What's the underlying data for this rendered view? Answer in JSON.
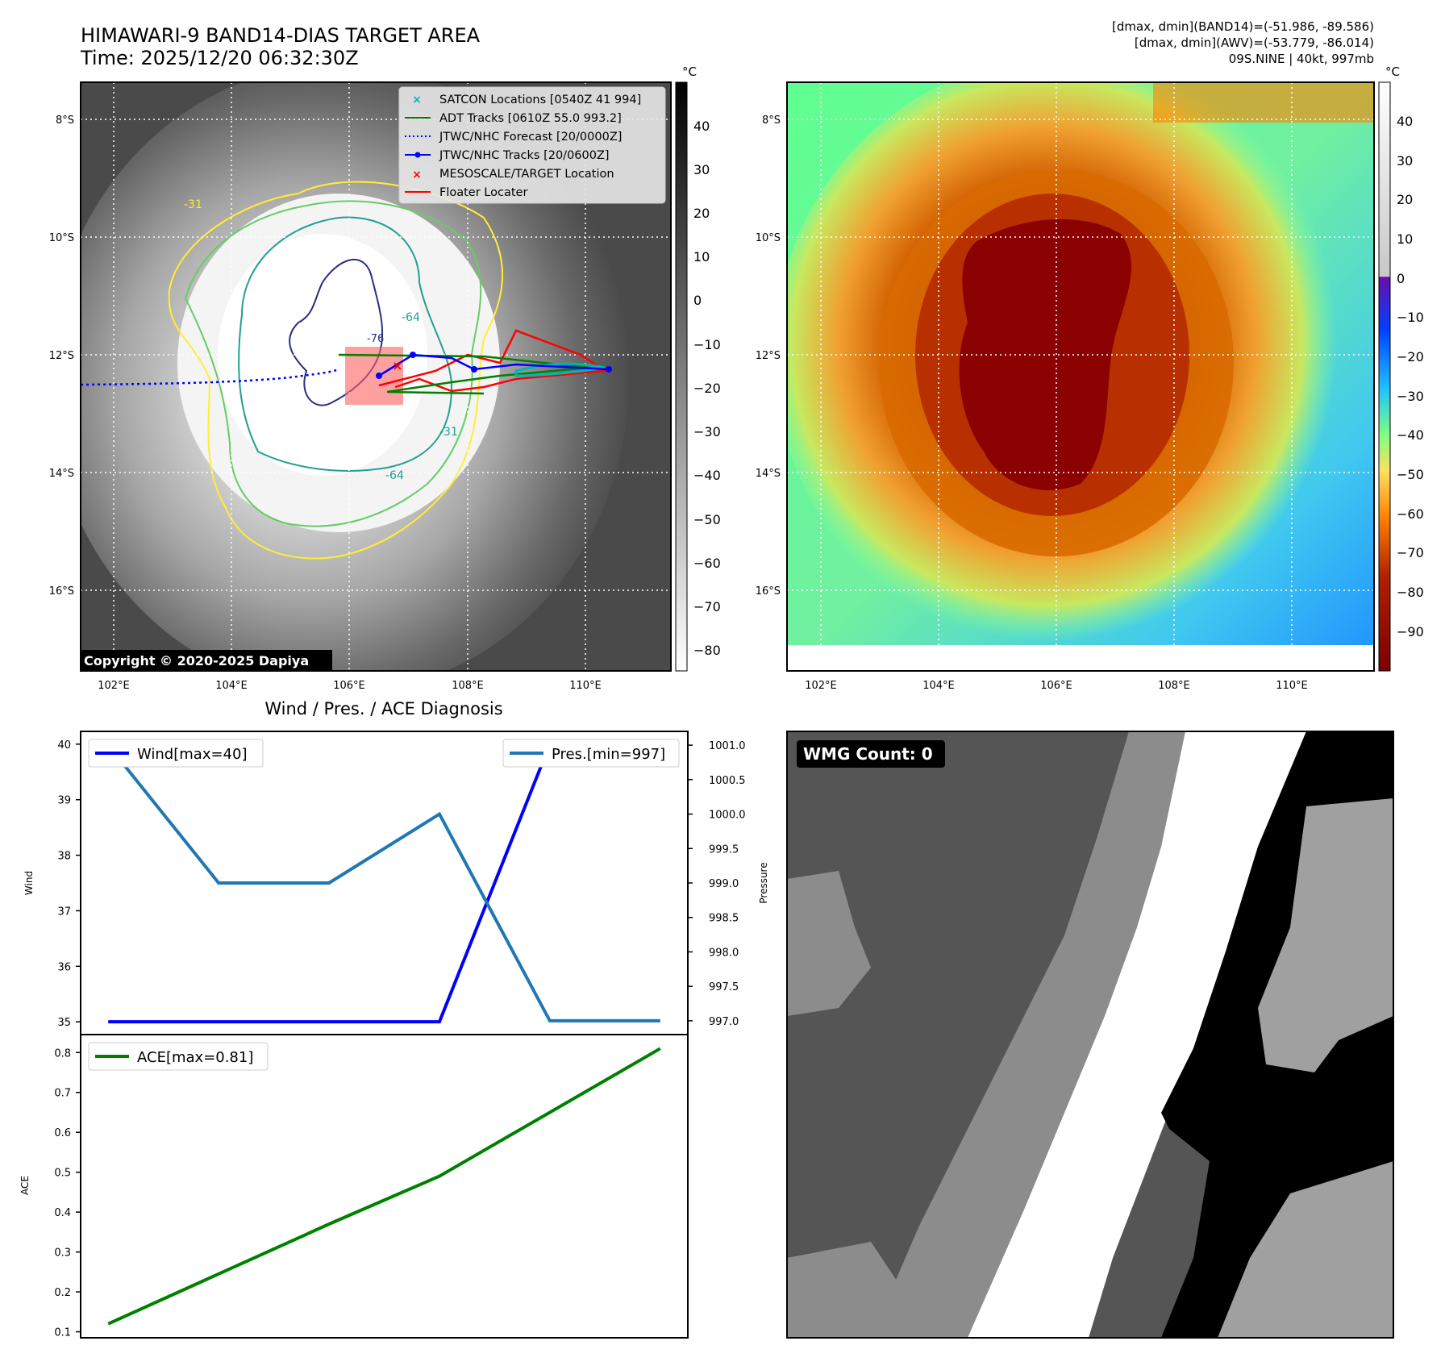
{
  "header": {
    "title_line1": "HIMAWARI-9 BAND14-DIAS TARGET AREA",
    "title_line2": "Time: 2025/12/20 06:32:30Z",
    "stats_line1": "[dmax, dmin](BAND14)=(-51.986, -89.586)",
    "stats_line2": "[dmax, dmin](AWV)=(-53.779, -86.014)",
    "stats_line3": "09S.NINE | 40kt, 997mb"
  },
  "map_left": {
    "copyright": "Copyright © 2020-2025 Dapiya",
    "lon_ticks": [
      "102°E",
      "104°E",
      "106°E",
      "108°E",
      "110°E"
    ],
    "lat_ticks": [
      "8°S",
      "10°S",
      "12°S",
      "14°S",
      "16°S"
    ],
    "contour_labels": [
      "-31",
      "-64",
      "-31",
      "-64",
      "-76"
    ],
    "legend": [
      {
        "label": "SATCON Locations [0540Z 41 994]",
        "color": "#00b5b5",
        "marker": "x"
      },
      {
        "label": "ADT Tracks [0610Z 55.0 993.2]",
        "color": "#008000",
        "marker": "line"
      },
      {
        "label": "JTWC/NHC Forecast [20/0000Z]",
        "color": "#0000ff",
        "marker": "dotted"
      },
      {
        "label": "JTWC/NHC Tracks [20/0600Z]",
        "color": "#0000ff",
        "marker": "line-dot"
      },
      {
        "label": "MESOSCALE/TARGET Location",
        "color": "#ff0000",
        "marker": "x"
      },
      {
        "label": "Floater Locater",
        "color": "#ff0000",
        "marker": "line"
      }
    ],
    "colorbar": {
      "unit": "°C",
      "ticks": [
        "40",
        "30",
        "20",
        "10",
        "0",
        "−10",
        "−20",
        "−30",
        "−40",
        "−50",
        "−60",
        "−70",
        "−80"
      ]
    }
  },
  "map_right": {
    "lon_ticks": [
      "102°E",
      "104°E",
      "106°E",
      "108°E",
      "110°E"
    ],
    "lat_ticks": [
      "8°S",
      "10°S",
      "12°S",
      "14°S",
      "16°S"
    ],
    "colorbar": {
      "unit": "°C",
      "ticks": [
        "40",
        "30",
        "20",
        "10",
        "0",
        "−10",
        "−20",
        "−30",
        "−40",
        "−50",
        "−60",
        "−70",
        "−80",
        "−90"
      ]
    }
  },
  "diagnosis": {
    "title": "Wind / Pres. / ACE Diagnosis",
    "wind_legend": "Wind[max=40]",
    "pres_legend": "Pres.[min=997]",
    "ace_legend": "ACE[max=0.81]",
    "wind_ylabel": "Wind",
    "pres_ylabel": "Pressure",
    "ace_ylabel": "ACE",
    "wind_ticks": [
      "40",
      "39",
      "38",
      "37",
      "36",
      "35"
    ],
    "pres_ticks": [
      "1001.0",
      "1000.5",
      "1000.0",
      "999.5",
      "999.0",
      "998.5",
      "998.0",
      "997.5",
      "997.0"
    ],
    "ace_ticks": [
      "0.8",
      "0.7",
      "0.6",
      "0.5",
      "0.4",
      "0.3",
      "0.2",
      "0.1"
    ]
  },
  "wmg": {
    "label": "WMG Count: 0"
  },
  "chart_data": [
    {
      "type": "line",
      "title": "Wind / Pres. / ACE Diagnosis",
      "x": [
        0,
        1,
        2,
        3,
        4,
        5
      ],
      "series": [
        {
          "name": "Wind[max=40]",
          "axis": "left",
          "color": "#0000ff",
          "values": [
            35,
            35,
            35,
            35,
            40,
            40
          ]
        },
        {
          "name": "Pres.[min=997]",
          "axis": "right",
          "color": "#1f77b4",
          "values": [
            1001,
            999,
            999,
            1000,
            997,
            997
          ]
        }
      ],
      "ylabel": "Wind",
      "ylim": [
        34.77,
        40.23
      ],
      "y2label": "Pressure",
      "y2lim": [
        996.8,
        1001.2
      ]
    },
    {
      "type": "line",
      "x": [
        0,
        1,
        2,
        3,
        4,
        5
      ],
      "series": [
        {
          "name": "ACE[max=0.81]",
          "color": "#008000",
          "values": [
            0.12,
            0.245,
            0.37,
            0.49,
            0.65,
            0.81
          ]
        }
      ],
      "ylabel": "ACE",
      "ylim": [
        0.085,
        0.845
      ]
    }
  ]
}
